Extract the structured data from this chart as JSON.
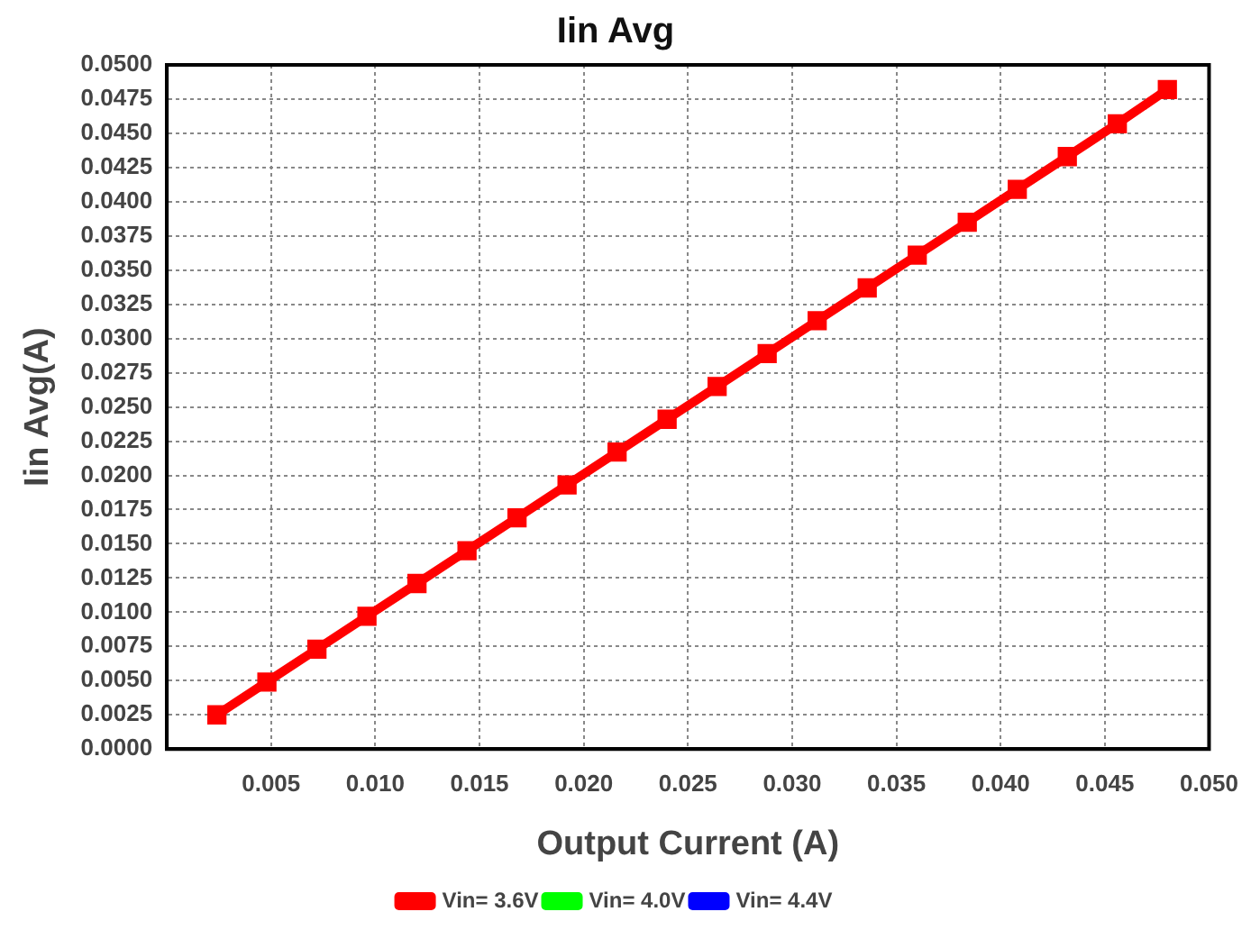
{
  "chart_data": {
    "type": "line",
    "title": "Iin Avg",
    "xlabel": "Output Current (A)",
    "ylabel": "Iin Avg(A)",
    "x": [
      0.0024,
      0.0048,
      0.0072,
      0.0096,
      0.012,
      0.0144,
      0.0168,
      0.0192,
      0.0216,
      0.024,
      0.0264,
      0.0288,
      0.0312,
      0.0336,
      0.036,
      0.0384,
      0.0408,
      0.0432,
      0.0456,
      0.048
    ],
    "series": [
      {
        "name": "Vin= 3.6V",
        "color": "#ff0000",
        "values": [
          0.0025,
          0.0049,
          0.0073,
          0.0097,
          0.0121,
          0.0145,
          0.0169,
          0.0193,
          0.0217,
          0.0241,
          0.0265,
          0.0289,
          0.0313,
          0.0337,
          0.0361,
          0.0385,
          0.0409,
          0.0433,
          0.0457,
          0.0482
        ]
      },
      {
        "name": "Vin= 4.0V",
        "color": "#00ff00",
        "values": [
          null,
          null,
          null,
          null,
          null,
          null,
          null,
          null,
          null,
          null,
          null,
          null,
          null,
          null,
          null,
          null,
          null,
          null,
          null,
          null
        ]
      },
      {
        "name": "Vin= 4.4V",
        "color": "#0000ff",
        "values": [
          null,
          null,
          null,
          null,
          null,
          null,
          null,
          null,
          null,
          null,
          null,
          null,
          null,
          null,
          null,
          null,
          null,
          null,
          null,
          null
        ]
      }
    ],
    "xlim": [
      0,
      0.05
    ],
    "xticks": [
      {
        "value": 0.005,
        "label": "0.005"
      },
      {
        "value": 0.01,
        "label": "0.010"
      },
      {
        "value": 0.015,
        "label": "0.015"
      },
      {
        "value": 0.02,
        "label": "0.020"
      },
      {
        "value": 0.025,
        "label": "0.025"
      },
      {
        "value": 0.03,
        "label": "0.030"
      },
      {
        "value": 0.035,
        "label": "0.035"
      },
      {
        "value": 0.04,
        "label": "0.040"
      },
      {
        "value": 0.045,
        "label": "0.045"
      },
      {
        "value": 0.05,
        "label": "0.050"
      }
    ],
    "ylim": [
      0,
      0.05
    ],
    "yticks": [
      {
        "value": 0,
        "label": "0.0000"
      },
      {
        "value": 0.0025,
        "label": "0.0025"
      },
      {
        "value": 0.005,
        "label": "0.0050"
      },
      {
        "value": 0.0075,
        "label": "0.0075"
      },
      {
        "value": 0.01,
        "label": "0.0100"
      },
      {
        "value": 0.0125,
        "label": "0.0125"
      },
      {
        "value": 0.015,
        "label": "0.0150"
      },
      {
        "value": 0.0175,
        "label": "0.0175"
      },
      {
        "value": 0.02,
        "label": "0.0200"
      },
      {
        "value": 0.0225,
        "label": "0.0225"
      },
      {
        "value": 0.025,
        "label": "0.0250"
      },
      {
        "value": 0.0275,
        "label": "0.0275"
      },
      {
        "value": 0.03,
        "label": "0.0300"
      },
      {
        "value": 0.0325,
        "label": "0.0325"
      },
      {
        "value": 0.035,
        "label": "0.0350"
      },
      {
        "value": 0.0375,
        "label": "0.0375"
      },
      {
        "value": 0.04,
        "label": "0.0400"
      },
      {
        "value": 0.0425,
        "label": "0.0425"
      },
      {
        "value": 0.045,
        "label": "0.0450"
      },
      {
        "value": 0.0475,
        "label": "0.0475"
      },
      {
        "value": 0.05,
        "label": "0.0500"
      }
    ],
    "grid": true,
    "legend": "bottom",
    "marker": "square",
    "line_style": "solid"
  }
}
